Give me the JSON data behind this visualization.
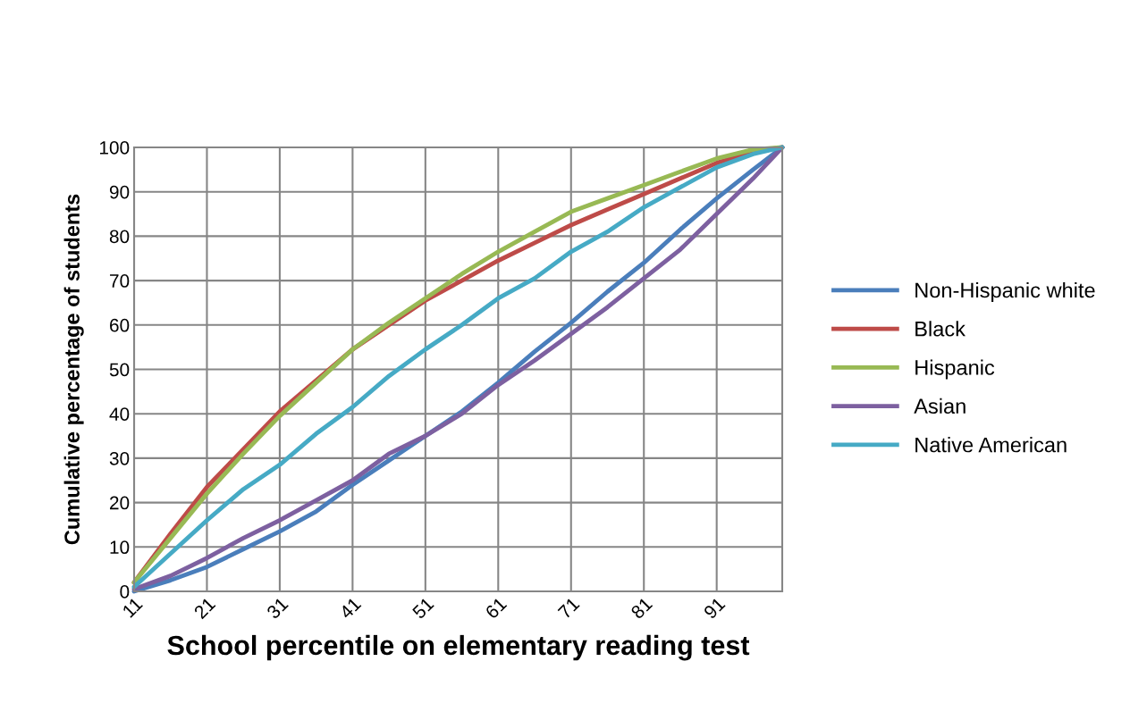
{
  "chart_data": {
    "type": "line",
    "xlabel": "School percentile on elementary reading test",
    "ylabel": "Cumulative percentage of students",
    "x": [
      11,
      16,
      21,
      26,
      31,
      36,
      41,
      46,
      51,
      56,
      61,
      66,
      71,
      76,
      81,
      86,
      91,
      96,
      100
    ],
    "series": [
      {
        "name": "Non-Hispanic white",
        "color": "#4a7ebb",
        "values": [
          0,
          2.5,
          5.5,
          9.5,
          13.5,
          18,
          24,
          29.5,
          35,
          40.5,
          47,
          54,
          60.5,
          67.5,
          74,
          81.5,
          88.5,
          95,
          100
        ]
      },
      {
        "name": "Black",
        "color": "#be4b48",
        "values": [
          2,
          13,
          23.5,
          32,
          40.5,
          47.5,
          54.5,
          60,
          65.5,
          70,
          74.5,
          78.5,
          82.5,
          86,
          89.5,
          93,
          96.5,
          99,
          100
        ]
      },
      {
        "name": "Hispanic",
        "color": "#98b954",
        "values": [
          2,
          12,
          22,
          31,
          39.5,
          47,
          54.5,
          60.5,
          66,
          71.5,
          76.5,
          81,
          85.5,
          88.5,
          91.5,
          94.5,
          97.5,
          99.5,
          100
        ]
      },
      {
        "name": "Asian",
        "color": "#7d60a0",
        "values": [
          0.5,
          3.5,
          7.5,
          12,
          16,
          20.5,
          25,
          31,
          35,
          40,
          46.5,
          52,
          58,
          64,
          70.5,
          77,
          85,
          93,
          100
        ]
      },
      {
        "name": "Native American",
        "color": "#46aac5",
        "values": [
          1,
          8.5,
          16,
          23,
          28.5,
          35.5,
          41.5,
          48.5,
          54.5,
          60,
          66,
          70.5,
          76.5,
          81,
          86.5,
          91,
          95.5,
          98.5,
          100
        ]
      }
    ],
    "xlim": [
      11,
      100
    ],
    "xticks": [
      11,
      21,
      31,
      41,
      51,
      61,
      71,
      81,
      91
    ],
    "ylim": [
      0,
      100
    ],
    "yticks": [
      0,
      10,
      20,
      30,
      40,
      50,
      60,
      70,
      80,
      90,
      100
    ],
    "grid": true,
    "legend": "right",
    "marker": "none",
    "line_style": "solid"
  }
}
